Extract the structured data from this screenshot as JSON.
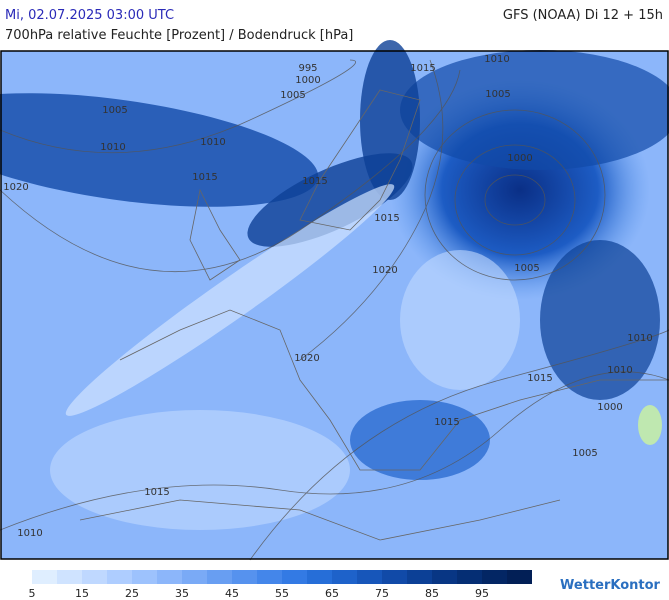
{
  "header": {
    "date": "Mi, 02.07.2025 03:00 UTC",
    "model": "GFS (NOAA) Di 12 + 15h",
    "subtitle": "700hPa relative Feuchte [Prozent] / Bodendruck [hPa]"
  },
  "map": {
    "isobar_labels": [
      "995",
      "1000",
      "1005",
      "1005",
      "1010",
      "1010",
      "1015",
      "1020",
      "1015",
      "1015",
      "1020",
      "1005",
      "1000",
      "1005",
      "1010",
      "1015",
      "1015",
      "1015",
      "1000",
      "1005",
      "1010",
      "1010",
      "1015",
      "1010",
      "1020"
    ]
  },
  "colorbar": {
    "labels": [
      5,
      15,
      25,
      35,
      45,
      55,
      65,
      75,
      85,
      95
    ],
    "colors": [
      "#dfeeff",
      "#cfe3ff",
      "#bfd8ff",
      "#aecdff",
      "#9dc2fd",
      "#8cb6fa",
      "#7aaaf6",
      "#689ef2",
      "#5692ee",
      "#4486ea",
      "#337ae4",
      "#266ed8",
      "#1e62ca",
      "#1756ba",
      "#114aa8",
      "#0c4096",
      "#083684",
      "#052e74",
      "#032664",
      "#021f56"
    ]
  },
  "logo": "WetterKontor"
}
